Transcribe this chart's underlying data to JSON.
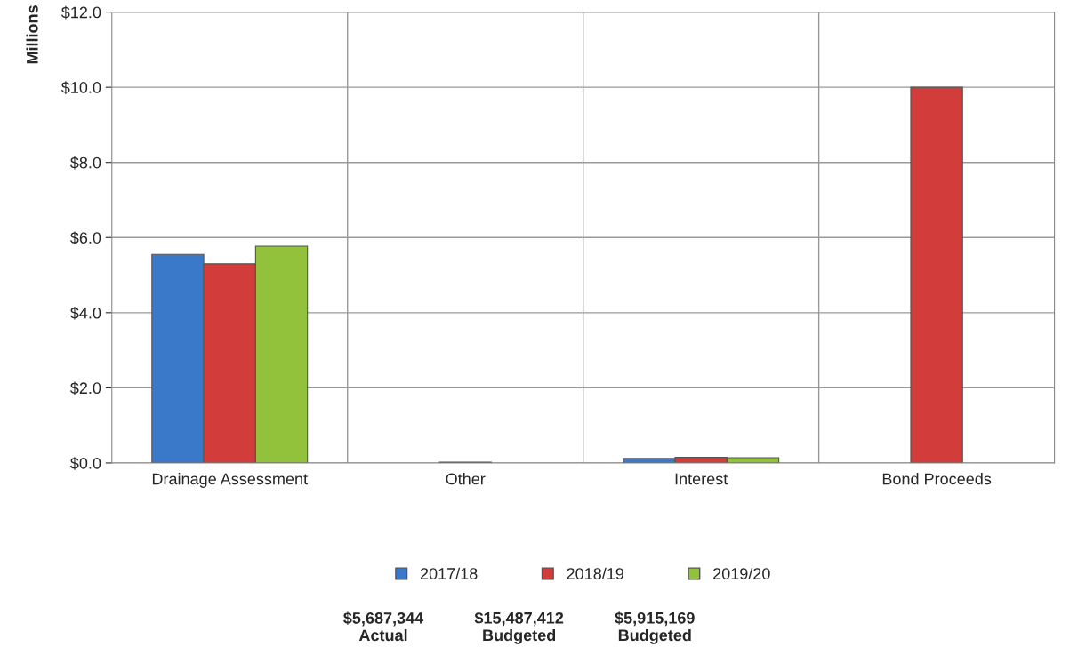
{
  "chart_data": {
    "type": "bar",
    "ylabel": "Millions",
    "categories": [
      "Drainage Assessment",
      "Other",
      "Interest",
      "Bond Proceeds"
    ],
    "series": [
      {
        "name": "2017/18",
        "color": "#3a78c9",
        "values": [
          5.55,
          null,
          0.12,
          null
        ]
      },
      {
        "name": "2018/19",
        "color": "#d23c3a",
        "values": [
          5.3,
          0.02,
          0.15,
          10.0
        ]
      },
      {
        "name": "2019/20",
        "color": "#92c23c",
        "values": [
          5.77,
          null,
          0.14,
          null
        ]
      }
    ],
    "ylim": [
      0,
      12
    ],
    "yticks": [
      {
        "value": 0,
        "label": "$0.0"
      },
      {
        "value": 2,
        "label": "$2.0"
      },
      {
        "value": 4,
        "label": "$4.0"
      },
      {
        "value": 6,
        "label": "$6.0"
      },
      {
        "value": 8,
        "label": "$8.0"
      },
      {
        "value": 10,
        "label": "$10.0"
      },
      {
        "value": 12,
        "label": "$12.0"
      }
    ],
    "grid": true,
    "legend": "bottom",
    "annotations": [
      "$5,687,344\nActual",
      "$15,487,412\nBudgeted",
      "$5,915,169\nBudgeted"
    ]
  }
}
